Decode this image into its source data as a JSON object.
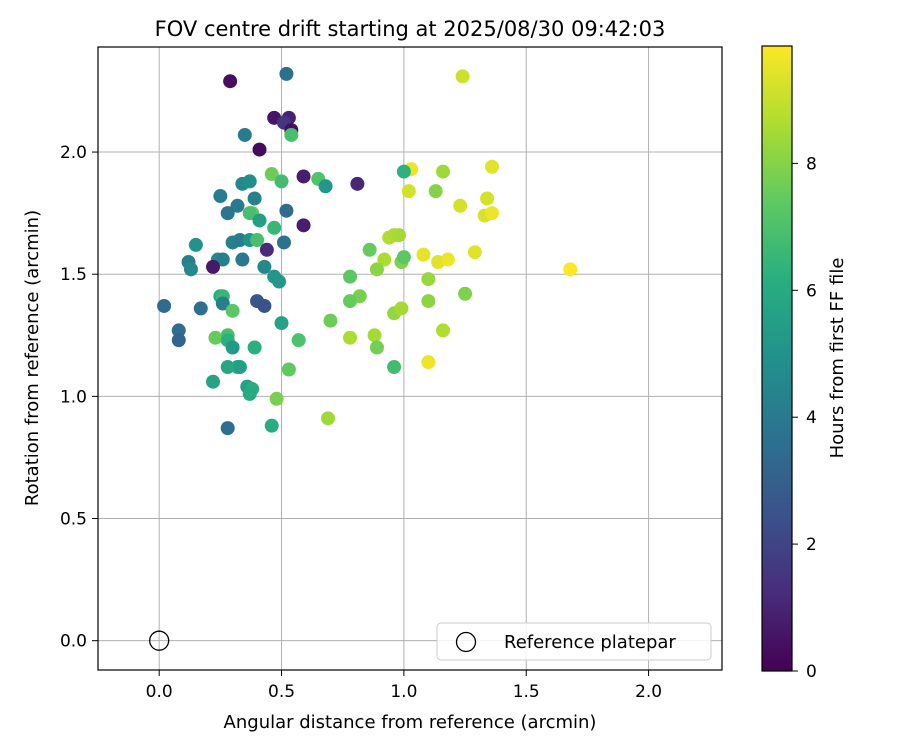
{
  "chart_data": {
    "type": "scatter",
    "title": "FOV centre drift starting at 2025/08/30 09:42:03",
    "xlabel": "Angular distance from reference (arcmin)",
    "ylabel": "Rotation from reference (arcmin)",
    "xlim": [
      -0.25,
      2.3
    ],
    "ylim": [
      -0.12,
      2.43
    ],
    "xticks": [
      0.0,
      0.5,
      1.0,
      1.5,
      2.0
    ],
    "xtick_labels": [
      "0.0",
      "0.5",
      "1.0",
      "1.5",
      "2.0"
    ],
    "yticks": [
      0.0,
      0.5,
      1.0,
      1.5,
      2.0
    ],
    "ytick_labels": [
      "0.0",
      "0.5",
      "1.0",
      "1.5",
      "2.0"
    ],
    "grid": true,
    "colorbar": {
      "label": "Hours from first FF file",
      "range": [
        0,
        9.85
      ],
      "ticks": [
        0,
        2,
        4,
        6,
        8
      ],
      "tick_labels": [
        "0",
        "2",
        "4",
        "6",
        "8"
      ],
      "colormap": "viridis"
    },
    "legend": {
      "position": "lower-right",
      "label": "Reference platepar"
    },
    "reference_point": {
      "x": 0.0,
      "y": 0.0
    },
    "points": [
      [
        0.29,
        2.29,
        0.4
      ],
      [
        0.52,
        2.32,
        3.6
      ],
      [
        0.47,
        2.14,
        0.6
      ],
      [
        0.53,
        2.14,
        0.9
      ],
      [
        0.51,
        2.12,
        1.5
      ],
      [
        0.54,
        2.09,
        0.4
      ],
      [
        0.35,
        2.07,
        4.1
      ],
      [
        0.54,
        2.07,
        6.9
      ],
      [
        0.41,
        2.01,
        0.3
      ],
      [
        0.59,
        1.9,
        0.8
      ],
      [
        0.65,
        1.89,
        7.1
      ],
      [
        0.68,
        1.86,
        5.2
      ],
      [
        0.81,
        1.87,
        1.1
      ],
      [
        0.34,
        1.87,
        4.5
      ],
      [
        0.37,
        1.88,
        4.8
      ],
      [
        0.46,
        1.91,
        7.6
      ],
      [
        0.5,
        1.88,
        6.8
      ],
      [
        0.39,
        1.81,
        4.3
      ],
      [
        0.25,
        1.82,
        4.1
      ],
      [
        0.32,
        1.78,
        4.0
      ],
      [
        0.28,
        1.75,
        3.8
      ],
      [
        0.52,
        1.76,
        3.4
      ],
      [
        0.38,
        1.75,
        7.5
      ],
      [
        0.37,
        1.75,
        6.9
      ],
      [
        0.41,
        1.72,
        5.5
      ],
      [
        0.59,
        1.7,
        0.8
      ],
      [
        0.47,
        1.69,
        6.5
      ],
      [
        0.3,
        1.63,
        4.3
      ],
      [
        0.33,
        1.64,
        4.1
      ],
      [
        0.37,
        1.64,
        5.0
      ],
      [
        0.4,
        1.64,
        6.9
      ],
      [
        0.51,
        1.63,
        3.7
      ],
      [
        0.15,
        1.62,
        5.0
      ],
      [
        0.44,
        1.6,
        1.2
      ],
      [
        0.24,
        1.56,
        4.6
      ],
      [
        0.34,
        1.56,
        3.9
      ],
      [
        0.26,
        1.56,
        4.2
      ],
      [
        0.12,
        1.55,
        4.2
      ],
      [
        0.22,
        1.53,
        0.7
      ],
      [
        0.13,
        1.52,
        4.6
      ],
      [
        0.43,
        1.53,
        4.6
      ],
      [
        0.47,
        1.49,
        5.2
      ],
      [
        0.49,
        1.47,
        5.2
      ],
      [
        0.25,
        1.41,
        6.0
      ],
      [
        0.26,
        1.41,
        6.5
      ],
      [
        0.26,
        1.38,
        4.2
      ],
      [
        0.02,
        1.37,
        3.4
      ],
      [
        0.17,
        1.36,
        3.6
      ],
      [
        0.4,
        1.39,
        2.7
      ],
      [
        0.43,
        1.37,
        2.4
      ],
      [
        0.3,
        1.35,
        7.3
      ],
      [
        0.5,
        1.3,
        5.6
      ],
      [
        0.08,
        1.27,
        3.5
      ],
      [
        0.28,
        1.25,
        6.9
      ],
      [
        0.08,
        1.23,
        3.2
      ],
      [
        0.23,
        1.24,
        7.5
      ],
      [
        0.28,
        1.23,
        6.2
      ],
      [
        0.57,
        1.23,
        7.0
      ],
      [
        0.3,
        1.2,
        5.3
      ],
      [
        0.39,
        1.2,
        6.2
      ],
      [
        0.28,
        1.12,
        5.8
      ],
      [
        0.32,
        1.12,
        6.0
      ],
      [
        0.33,
        1.12,
        5.5
      ],
      [
        0.53,
        1.11,
        7.4
      ],
      [
        0.22,
        1.06,
        5.7
      ],
      [
        0.36,
        1.04,
        5.5
      ],
      [
        0.38,
        1.03,
        6.1
      ],
      [
        0.37,
        1.01,
        6.0
      ],
      [
        0.48,
        0.99,
        7.8
      ],
      [
        0.28,
        0.87,
        3.6
      ],
      [
        0.46,
        0.88,
        6.1
      ],
      [
        0.69,
        0.91,
        8.4
      ],
      [
        1.24,
        2.31,
        9.1
      ],
      [
        1.03,
        1.93,
        9.6
      ],
      [
        1.16,
        1.92,
        8.4
      ],
      [
        1.36,
        1.94,
        9.4
      ],
      [
        1.0,
        1.92,
        6.3
      ],
      [
        1.02,
        1.84,
        9.2
      ],
      [
        1.13,
        1.84,
        8.0
      ],
      [
        1.34,
        1.81,
        9.2
      ],
      [
        1.23,
        1.78,
        9.2
      ],
      [
        1.33,
        1.74,
        9.3
      ],
      [
        1.36,
        1.75,
        9.6
      ],
      [
        0.94,
        1.65,
        8.7
      ],
      [
        0.96,
        1.66,
        8.6
      ],
      [
        0.98,
        1.66,
        8.5
      ],
      [
        0.86,
        1.6,
        7.5
      ],
      [
        0.92,
        1.56,
        8.6
      ],
      [
        1.08,
        1.58,
        9.5
      ],
      [
        1.14,
        1.55,
        9.4
      ],
      [
        1.18,
        1.56,
        9.6
      ],
      [
        1.29,
        1.59,
        9.4
      ],
      [
        0.99,
        1.55,
        7.9
      ],
      [
        1.0,
        1.57,
        7.3
      ],
      [
        0.89,
        1.52,
        8.1
      ],
      [
        0.78,
        1.49,
        7.3
      ],
      [
        1.1,
        1.48,
        8.3
      ],
      [
        1.68,
        1.52,
        9.8
      ],
      [
        0.82,
        1.41,
        7.8
      ],
      [
        0.78,
        1.39,
        7.5
      ],
      [
        0.96,
        1.34,
        8.2
      ],
      [
        0.99,
        1.36,
        8.5
      ],
      [
        1.1,
        1.39,
        8.1
      ],
      [
        1.25,
        1.42,
        7.9
      ],
      [
        0.7,
        1.31,
        7.6
      ],
      [
        0.88,
        1.25,
        8.5
      ],
      [
        0.89,
        1.2,
        7.7
      ],
      [
        0.78,
        1.24,
        8.6
      ],
      [
        1.16,
        1.27,
        8.7
      ],
      [
        0.96,
        1.12,
        6.8
      ],
      [
        1.1,
        1.14,
        9.6
      ]
    ]
  }
}
